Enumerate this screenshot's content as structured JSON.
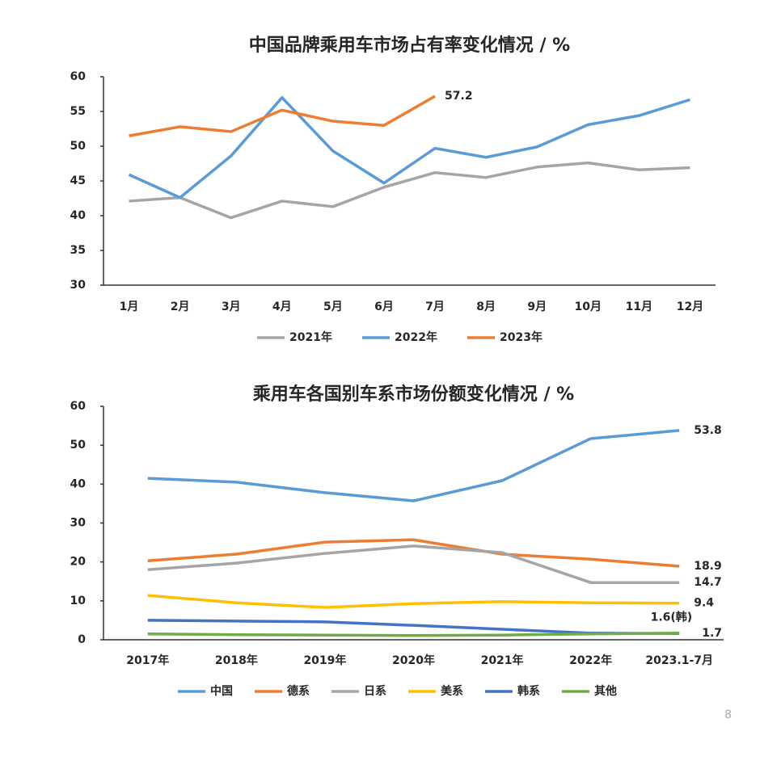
{
  "chart_data": [
    {
      "type": "line",
      "title": "中国品牌乘用车市场占有率变化情况 / %",
      "categories": [
        "1月",
        "2月",
        "3月",
        "4月",
        "5月",
        "6月",
        "7月",
        "8月",
        "9月",
        "10月",
        "11月",
        "12月"
      ],
      "ylim": [
        30,
        60
      ],
      "yticks": [
        30,
        35,
        40,
        45,
        50,
        55,
        60
      ],
      "grid": false,
      "legend": "bottom",
      "series": [
        {
          "name": "2021年",
          "color": "#a5a5a5",
          "values": [
            42.1,
            42.6,
            39.7,
            42.1,
            41.3,
            44.1,
            46.2,
            45.5,
            47.0,
            47.6,
            46.6,
            46.9
          ],
          "value_labels": [
            null,
            null,
            null,
            null,
            null,
            null,
            null,
            null,
            null,
            null,
            null,
            null
          ]
        },
        {
          "name": "2022年",
          "color": "#5b9bd5",
          "values": [
            45.9,
            42.6,
            48.6,
            57.0,
            49.3,
            44.7,
            49.7,
            48.4,
            49.9,
            53.1,
            54.4,
            56.7
          ],
          "value_labels": [
            null,
            null,
            null,
            null,
            null,
            null,
            null,
            null,
            null,
            null,
            null,
            null
          ]
        },
        {
          "name": "2023年",
          "color": "#ed7d31",
          "values": [
            51.5,
            52.8,
            52.1,
            55.2,
            53.6,
            53.0,
            57.2,
            null,
            null,
            null,
            null,
            null
          ],
          "value_labels": [
            null,
            null,
            null,
            null,
            null,
            null,
            "57.2",
            null,
            null,
            null,
            null,
            null
          ]
        }
      ]
    },
    {
      "type": "line",
      "title": "乘用车各国别车系市场份额变化情况 / %",
      "categories": [
        "2017年",
        "2018年",
        "2019年",
        "2020年",
        "2021年",
        "2022年",
        "2023.1-7月"
      ],
      "ylim": [
        0,
        60
      ],
      "yticks": [
        0,
        10,
        20,
        30,
        40,
        50,
        60
      ],
      "grid": false,
      "legend": "bottom",
      "series": [
        {
          "name": "中国",
          "color": "#5b9bd5",
          "values": [
            41.5,
            40.5,
            37.8,
            35.7,
            40.9,
            51.7,
            53.8
          ],
          "value_labels": [
            null,
            null,
            null,
            null,
            null,
            null,
            "53.8"
          ]
        },
        {
          "name": "德系",
          "color": "#ed7d31",
          "values": [
            20.3,
            22.0,
            25.1,
            25.7,
            22.0,
            20.7,
            18.9
          ],
          "value_labels": [
            null,
            null,
            null,
            null,
            null,
            null,
            "18.9"
          ]
        },
        {
          "name": "日系",
          "color": "#a5a5a5",
          "values": [
            18.0,
            19.7,
            22.2,
            24.1,
            22.4,
            14.7,
            14.7
          ],
          "value_labels": [
            null,
            null,
            null,
            null,
            null,
            null,
            "14.7"
          ]
        },
        {
          "name": "美系",
          "color": "#ffc000",
          "values": [
            11.4,
            9.5,
            8.3,
            9.3,
            9.8,
            9.5,
            9.4
          ],
          "value_labels": [
            null,
            null,
            null,
            null,
            null,
            null,
            "9.4"
          ]
        },
        {
          "name": "韩系",
          "color": "#4472c4",
          "values": [
            5.0,
            4.8,
            4.6,
            3.7,
            2.7,
            1.7,
            1.6
          ],
          "value_labels": [
            null,
            null,
            null,
            null,
            null,
            null,
            "1.6(韩)"
          ]
        },
        {
          "name": "其他",
          "color": "#70ad47",
          "values": [
            1.5,
            1.3,
            1.2,
            1.1,
            1.2,
            1.5,
            1.7
          ],
          "value_labels": [
            null,
            null,
            null,
            null,
            null,
            null,
            "1.7"
          ]
        }
      ]
    }
  ],
  "page_number": "8"
}
